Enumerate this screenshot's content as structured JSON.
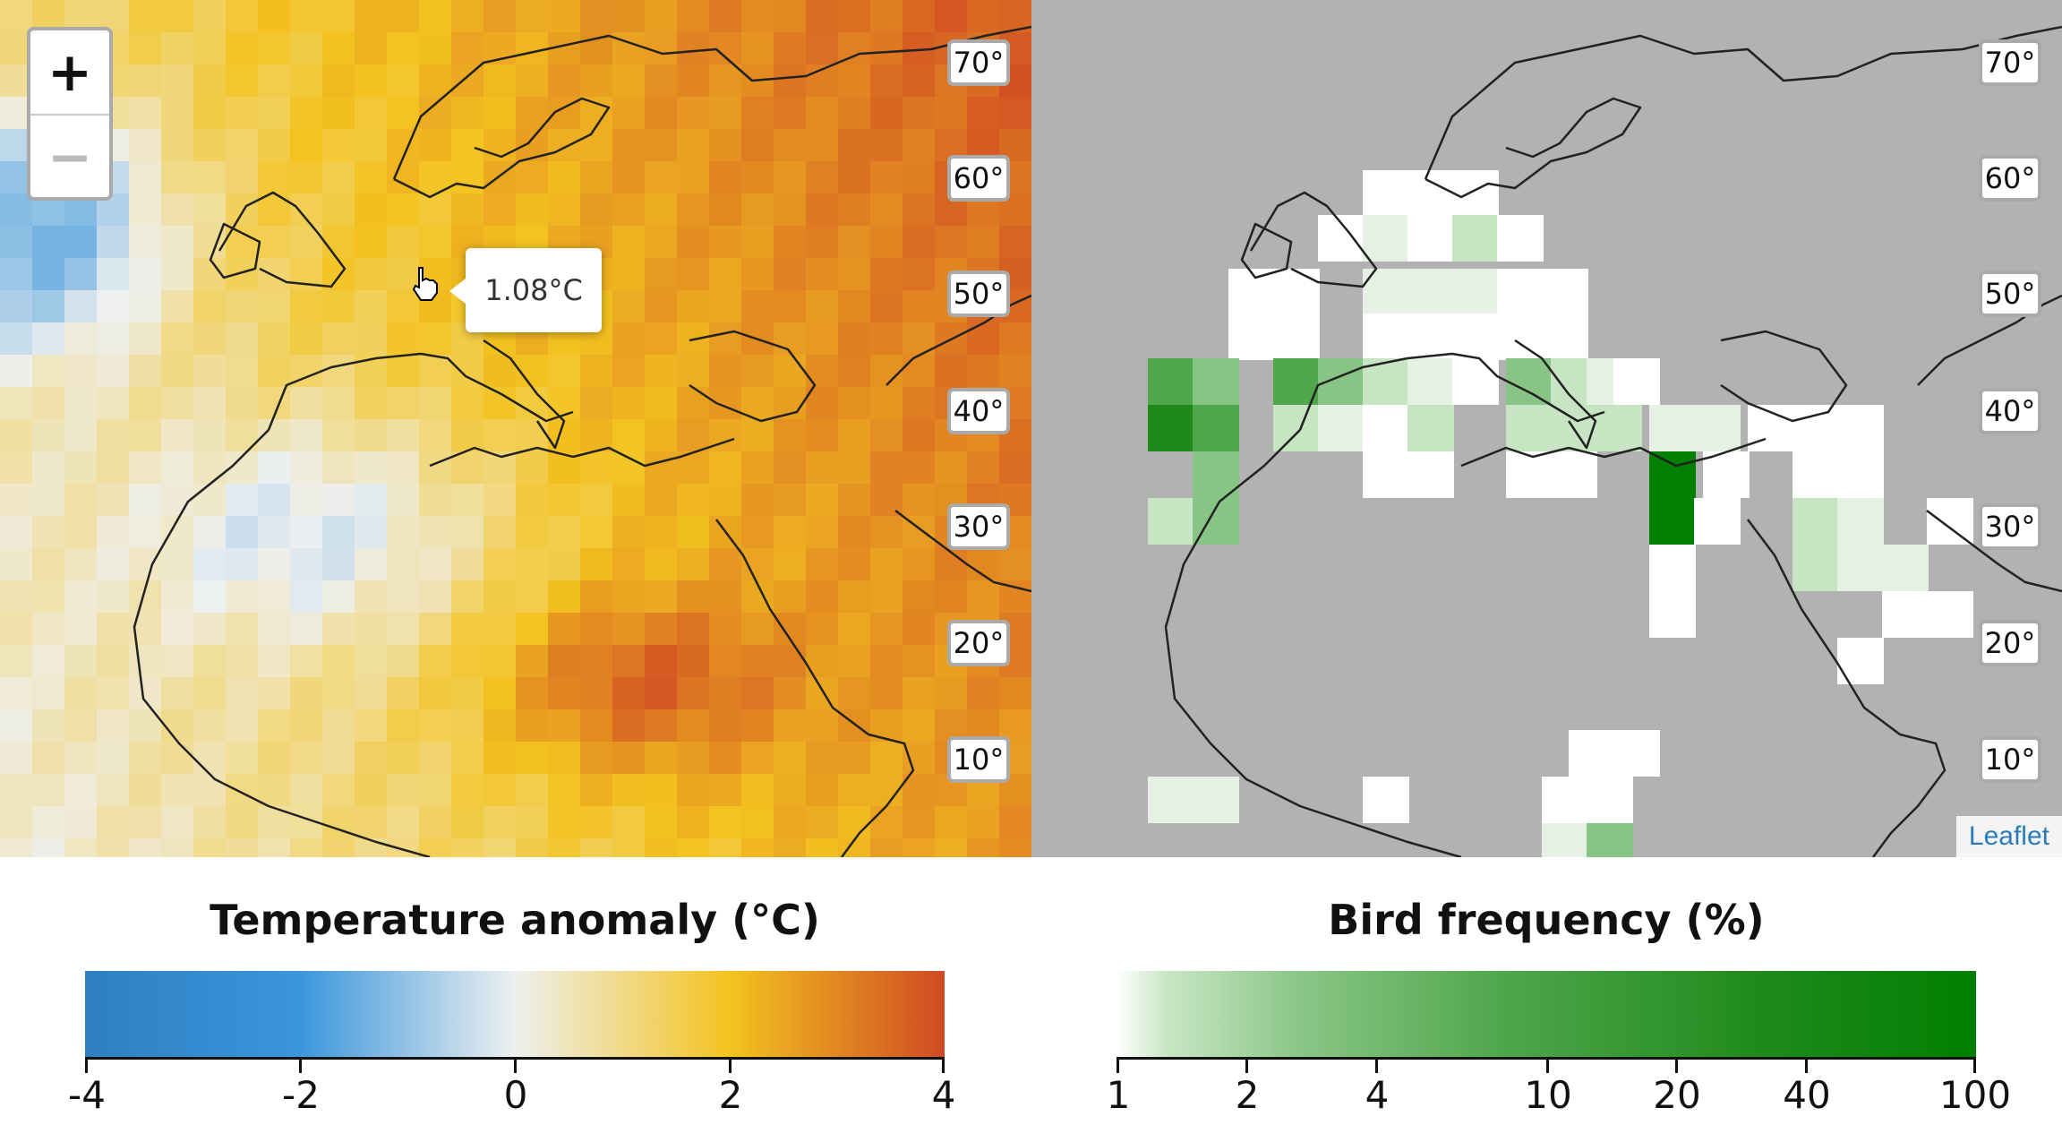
{
  "map": {
    "latitude_labels": [
      "70°",
      "60°",
      "50°",
      "40°",
      "30°",
      "20°",
      "10°"
    ],
    "zoom_in_label": "+",
    "zoom_out_label": "−",
    "tooltip_value": "1.08°C",
    "attribution": "Leaflet"
  },
  "colors": {
    "ocean_right": "#b2b2b2",
    "coastline": "#222222",
    "temperature_scale": [
      "#2f7fc1",
      "#3a96dc",
      "#eef0f0",
      "#f3c320",
      "#d04a23"
    ],
    "bird_scale": [
      "#ffffff",
      "#e5f2e3",
      "#c7e5c3",
      "#88c585",
      "#4fa64b",
      "#1f8a1c",
      "#007f00"
    ]
  },
  "legends": {
    "temperature": {
      "title": "Temperature anomaly (°C)",
      "ticks": [
        "-4",
        "-2",
        "0",
        "2",
        "4"
      ]
    },
    "bird": {
      "title": "Bird frequency (%)",
      "ticks": [
        "1",
        "2",
        "4",
        "10",
        "20",
        "40",
        "100"
      ]
    }
  }
}
